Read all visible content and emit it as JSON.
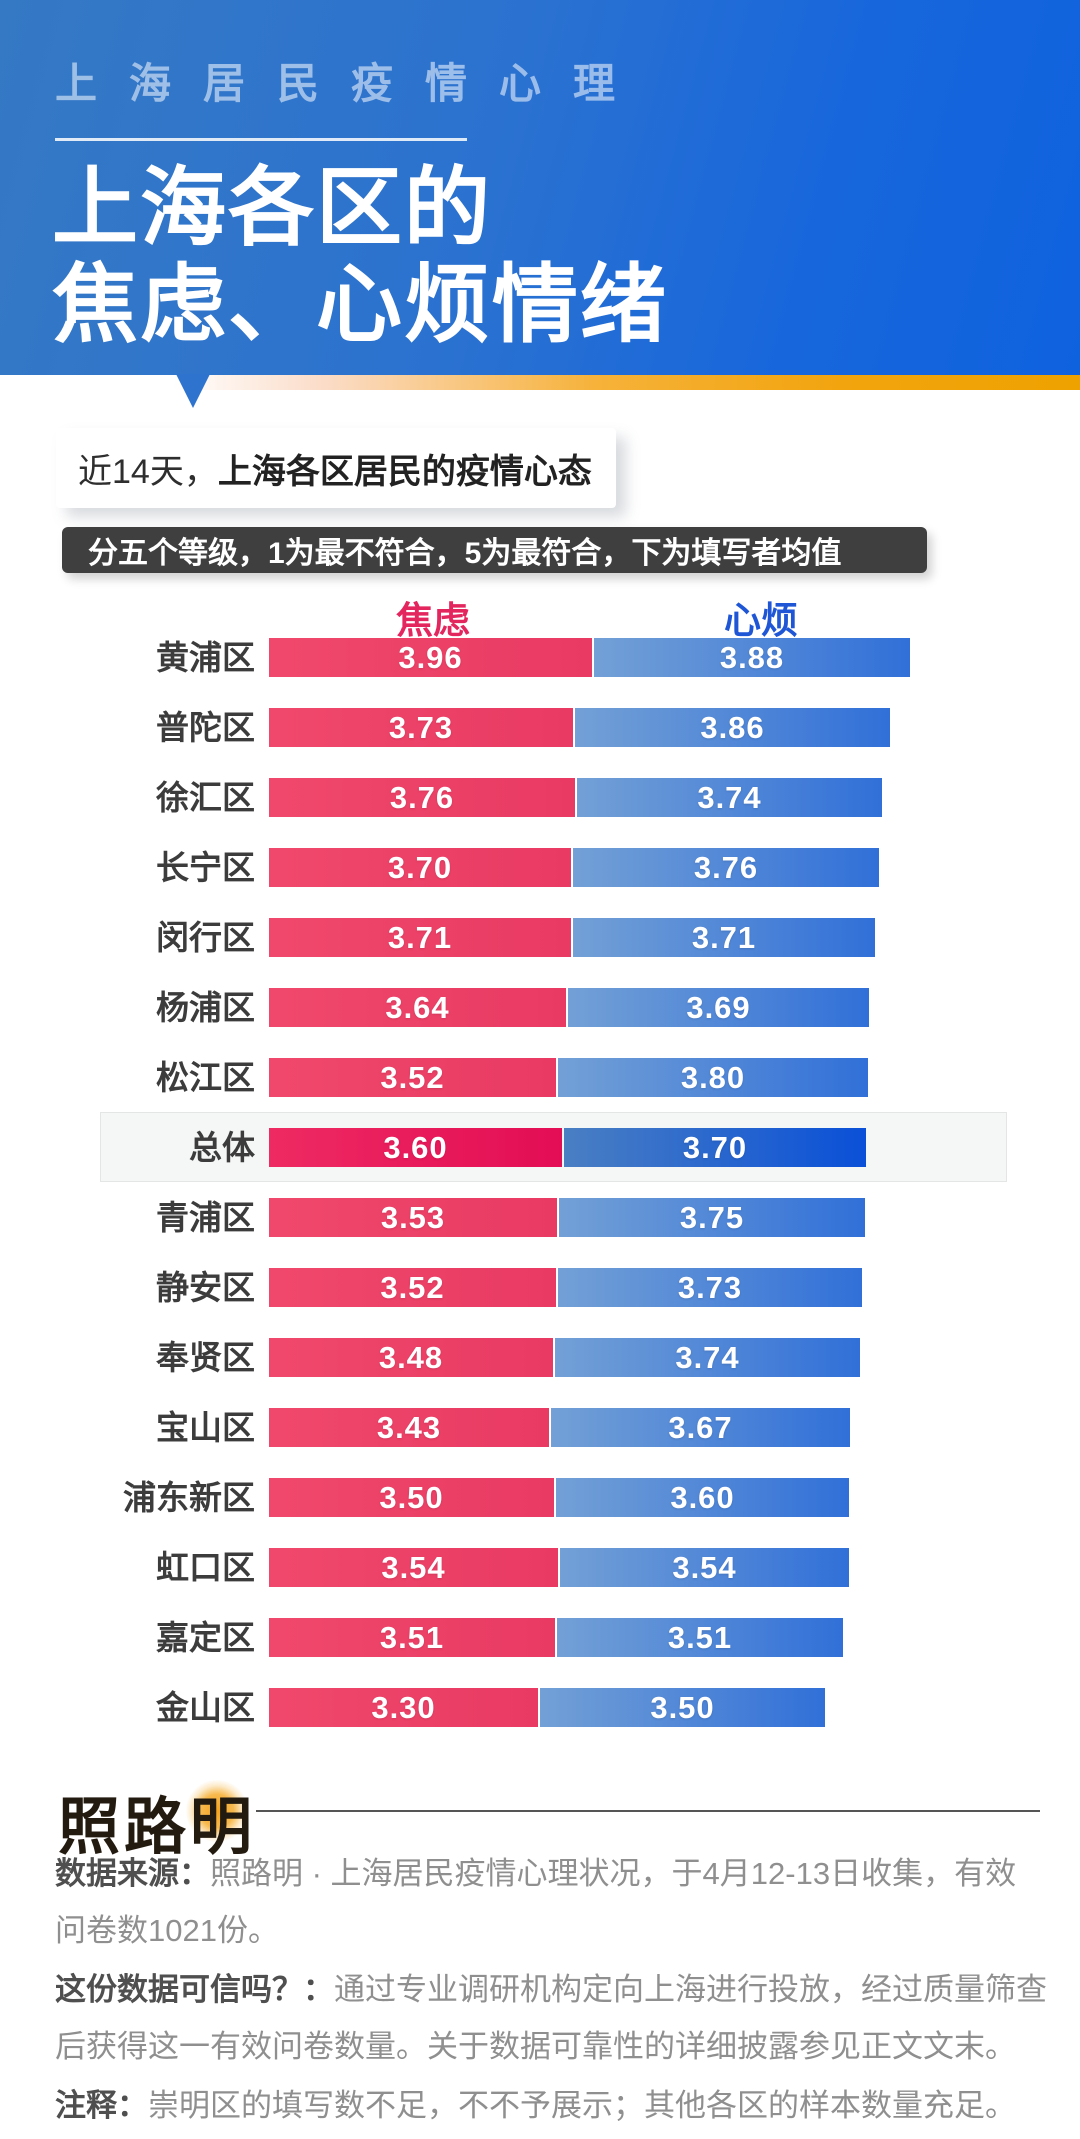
{
  "header": {
    "kicker": "上海居民疫情心理",
    "title_line1": "上海各区的",
    "title_line2": "焦虑、心烦情绪",
    "bg_color_left": "#3579c4",
    "bg_color_right": "#0f62de",
    "accent_strip_color": "#f2a40e"
  },
  "intro": {
    "bubble_prefix": "近14天，",
    "bubble_emphasis": "上海各区居民的疫情心态",
    "scale_note": "分五个等级，1为最不符合，5为最符合，下为填写者均值"
  },
  "chart_data": {
    "type": "bar",
    "orientation": "horizontal-stacked",
    "value_range": [
      1,
      5
    ],
    "series": [
      {
        "name": "焦虑",
        "label_color": "#e3265e",
        "bar_from": "#f0486c",
        "bar_to": "#e93a63",
        "bar_from_highlight": "#ee2a62",
        "bar_to_highlight": "#e30d55"
      },
      {
        "name": "心烦",
        "label_color": "#1e56d6",
        "bar_from": "#73a0d6",
        "bar_to": "#3170d8",
        "bar_from_highlight": "#4a7fc3",
        "bar_to_highlight": "#0a50d8"
      }
    ],
    "categories": [
      "黄浦区",
      "普陀区",
      "徐汇区",
      "长宁区",
      "闵行区",
      "杨浦区",
      "松江区",
      "总体",
      "青浦区",
      "静安区",
      "奉贤区",
      "宝山区",
      "浦东新区",
      "虹口区",
      "嘉定区",
      "金山区"
    ],
    "values": [
      [
        3.96,
        3.88
      ],
      [
        3.73,
        3.86
      ],
      [
        3.76,
        3.74
      ],
      [
        3.7,
        3.76
      ],
      [
        3.71,
        3.71
      ],
      [
        3.64,
        3.69
      ],
      [
        3.52,
        3.8
      ],
      [
        3.6,
        3.7
      ],
      [
        3.53,
        3.75
      ],
      [
        3.52,
        3.73
      ],
      [
        3.48,
        3.74
      ],
      [
        3.43,
        3.67
      ],
      [
        3.5,
        3.6
      ],
      [
        3.54,
        3.54
      ],
      [
        3.51,
        3.51
      ],
      [
        3.3,
        3.5
      ]
    ],
    "highlight_category": "总体",
    "value_decimals": 2
  },
  "footer": {
    "logo_text": "照路明",
    "notes": [
      {
        "label": "数据来源：",
        "text": "照路明 · 上海居民疫情心理状况，于4月12-13日收集，有效问卷数1021份。"
      },
      {
        "label": "这份数据可信吗？：",
        "text": "通过专业调研机构定向上海进行投放，经过质量筛查后获得这一有效问卷数量。关于数据可靠性的详细披露参见正文文末。"
      },
      {
        "label": "注释：",
        "text": "崇明区的填写数不足，不不予展示；其他各区的样本数量充足。"
      }
    ]
  }
}
